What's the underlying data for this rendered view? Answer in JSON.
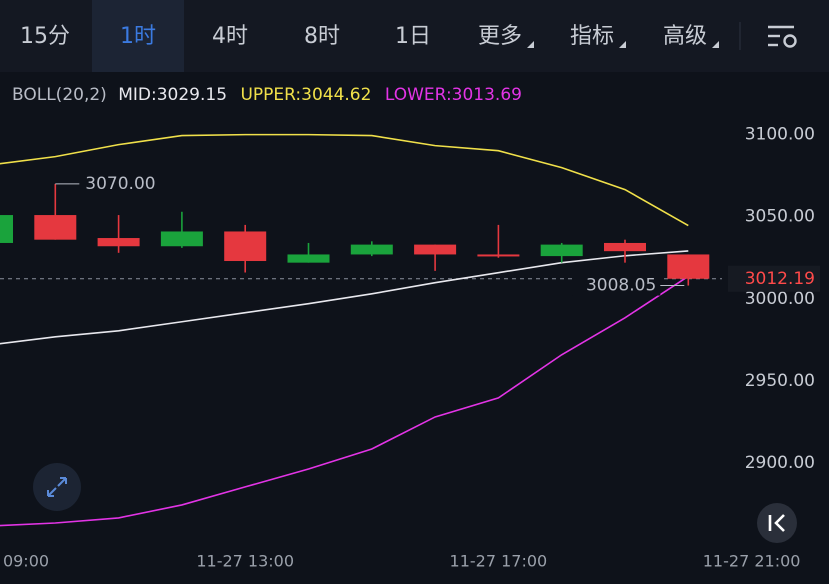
{
  "ui": {
    "tabs": [
      "15分",
      "1时",
      "4时",
      "8时",
      "1日",
      "更多",
      "指标",
      "高级"
    ],
    "selected_tab": 1
  },
  "chart_data": {
    "type": "candlestick",
    "indicator": "BOLL(20,2)",
    "x": [
      "11-27 09:00",
      "11-27 10:00",
      "11-27 11:00",
      "11-27 12:00",
      "11-27 13:00",
      "11-27 14:00",
      "11-27 15:00",
      "11-27 16:00",
      "11-27 17:00",
      "11-27 18:00",
      "11-27 19:00",
      "11-27 20:00"
    ],
    "open": [
      3034,
      3051,
      3037,
      3032,
      3041,
      3022,
      3027,
      3033,
      3027,
      3026,
      3034,
      3027
    ],
    "high": [
      3052,
      3070,
      3051,
      3053,
      3045,
      3034,
      3035,
      3033,
      3045,
      3034,
      3036,
      3027
    ],
    "low": [
      3033,
      3036,
      3028,
      3031,
      3016,
      3022,
      3026,
      3017,
      3025,
      3022,
      3022,
      3008.05
    ],
    "close": [
      3051,
      3036,
      3032,
      3041,
      3023,
      3027,
      3033,
      3027,
      3026,
      3033,
      3029,
      3012.19
    ],
    "up_color": "#1aa33c",
    "down_color": "#e5383f",
    "series": [
      {
        "name": "MID:3029.15",
        "color": "#e8e8ee",
        "values": [
          2972,
          2976.8,
          2980.5,
          2986,
          2991.5,
          2997,
          3003,
          3009.8,
          3015.9,
          3022,
          3026.2,
          3029.15
        ]
      },
      {
        "name": "UPPER:3044.62",
        "color": "#f0e04a",
        "values": [
          3081.7,
          3086.6,
          3093.9,
          3099.4,
          3100,
          3100,
          3099.4,
          3093.3,
          3090.2,
          3079.9,
          3066.5,
          3044.62
        ]
      },
      {
        "name": "LOWER:3013.69",
        "color": "#e334e6",
        "values": [
          2861.6,
          2863.4,
          2866.5,
          2874.4,
          2885.4,
          2896.3,
          2908.5,
          2928,
          2939.6,
          2965.9,
          2988.4,
          3013.69
        ]
      }
    ],
    "annotations": [
      {
        "label": "3070.00",
        "value": 3070
      },
      {
        "label": "3008.05",
        "value": 3008.05
      },
      {
        "label": "3012.19",
        "value": 3012.19
      }
    ],
    "ylim": [
      2850,
      3115
    ],
    "yticks": [
      {
        "value": 2900,
        "label": "2900.00"
      },
      {
        "value": 2950,
        "label": "2950.00"
      },
      {
        "value": 3000,
        "label": "3000.00"
      },
      {
        "value": 3050,
        "label": "3050.00"
      },
      {
        "value": 3100,
        "label": "3100.00"
      }
    ],
    "xlim": [
      "11-27 09:00",
      "11-27 21:00"
    ],
    "xticks": [
      {
        "value": "11-27 09:00",
        "label": "09:00"
      },
      "11-27 13:00",
      "11-27 17:00",
      "11-27 21:00"
    ]
  }
}
